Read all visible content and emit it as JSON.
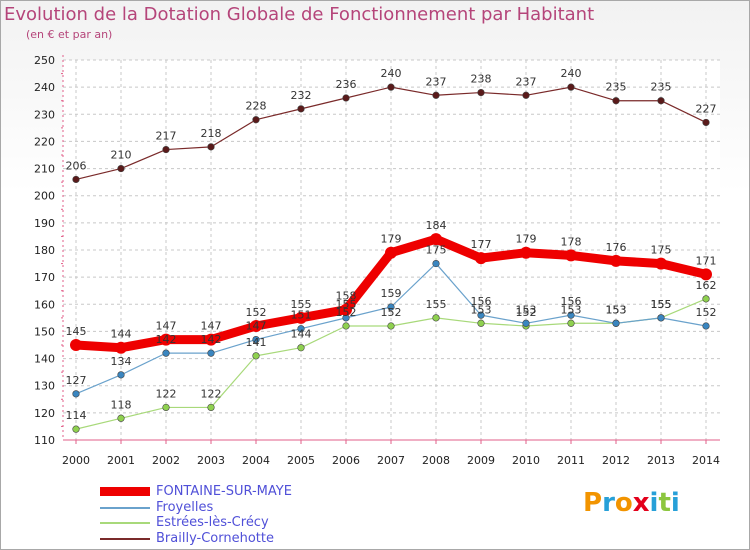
{
  "title": "Evolution de la Dotation Globale de Fonctionnement par Habitant",
  "subtitle": "(en € et par an)",
  "logo": {
    "letters": [
      "P",
      "r",
      "o",
      "x",
      "i",
      "t",
      "i"
    ],
    "colors": [
      "#f29400",
      "#27a0d8",
      "#f29400",
      "#e3001b",
      "#27a0d8",
      "#8cc63f",
      "#27a0d8"
    ]
  },
  "chart_data": {
    "type": "line",
    "title": "Evolution de la Dotation Globale de Fonctionnement par Habitant",
    "subtitle": "(en € et par an)",
    "xlabel": "",
    "ylabel": "",
    "ylim": [
      110,
      250
    ],
    "yticks": [
      110,
      120,
      130,
      140,
      150,
      160,
      170,
      180,
      190,
      200,
      210,
      220,
      230,
      240,
      250
    ],
    "grid": true,
    "categories": [
      "2000",
      "2001",
      "2002",
      "2003",
      "2004",
      "2005",
      "2006",
      "2007",
      "2008",
      "2009",
      "2010",
      "2011",
      "2012",
      "2013",
      "2014"
    ],
    "series": [
      {
        "name": "Brailly-Cornehotte",
        "color": "#7a2a2a",
        "marker": "#5a1a1a",
        "width": 1.2,
        "values": [
          206,
          210,
          217,
          218,
          228,
          232,
          236,
          240,
          237,
          238,
          237,
          240,
          235,
          235,
          227
        ],
        "labels": [
          "206",
          "210",
          "217",
          "218",
          "228",
          "232",
          "236",
          "240",
          "237",
          "238",
          "237",
          "240",
          "235",
          "235",
          "227"
        ]
      },
      {
        "name": "Estrées-lès-Crécy",
        "color": "#a8d97a",
        "marker": "#8fd14f",
        "width": 1.2,
        "values": [
          114,
          118,
          122,
          122,
          141,
          144,
          152,
          152,
          155,
          153,
          152,
          153,
          153,
          155,
          162
        ],
        "labels": [
          "114",
          "118",
          "122",
          "122",
          "141",
          "144",
          "152",
          "152",
          "155",
          "153",
          "152",
          "153",
          "153",
          "155",
          "162"
        ]
      },
      {
        "name": "Froyelles",
        "color": "#6aa2cc",
        "marker": "#3a86c0",
        "width": 1.2,
        "values": [
          127,
          134,
          142,
          142,
          147,
          151,
          155,
          159,
          175,
          156,
          153,
          156,
          153,
          155,
          152
        ],
        "labels": [
          "127",
          "134",
          "142",
          "142",
          "147",
          "151",
          "155",
          "159",
          "175",
          "156",
          "153",
          "156",
          "153",
          "155",
          "152"
        ]
      },
      {
        "name": "FONTAINE-SUR-MAYE",
        "color": "#ee0000",
        "marker": "#ee0000",
        "width": 9,
        "values": [
          145,
          144,
          147,
          147,
          152,
          155,
          158,
          179,
          184,
          177,
          179,
          178,
          176,
          175,
          171
        ],
        "labels": [
          "145",
          "144",
          "147",
          "147",
          "152",
          "155",
          "158",
          "179",
          "184",
          "177",
          "179",
          "178",
          "176",
          "175",
          "171"
        ]
      }
    ],
    "legend": [
      {
        "name": "FONTAINE-SUR-MAYE",
        "color": "#ee0000",
        "thickness": 9
      },
      {
        "name": "Froyelles",
        "color": "#6aa2cc",
        "thickness": 2
      },
      {
        "name": "Estrées-lès-Crécy",
        "color": "#a8d97a",
        "thickness": 2
      },
      {
        "name": "Brailly-Cornehotte",
        "color": "#7a2a2a",
        "thickness": 2
      }
    ],
    "legend_position": "bottom-left"
  }
}
